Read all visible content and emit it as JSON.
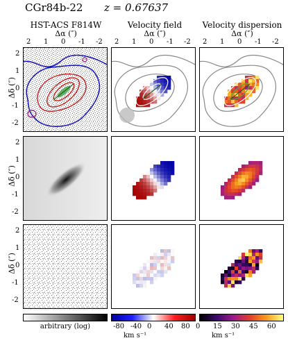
{
  "header": {
    "object": "CGr84b-22",
    "redshift": "z = 0.67637"
  },
  "columns": [
    {
      "title": "HST-ACS F814W",
      "xlabel": "Δα (″)"
    },
    {
      "title": "Velocity field",
      "xlabel": "Δα (″)"
    },
    {
      "title": "Velocity dispersion",
      "xlabel": "Δα (″)"
    }
  ],
  "xticks": [
    "2",
    "1",
    "0",
    "-1",
    "-2"
  ],
  "yticks": [
    "2",
    "1",
    "0",
    "-1",
    "-2"
  ],
  "ylabel": "Δδ (″)",
  "colorbars": {
    "image": {
      "label": "arbitrary (log)",
      "ticks": []
    },
    "velocity": {
      "unit": "km s⁻¹",
      "ticks": [
        "-80",
        "-40",
        "0",
        "40",
        "80"
      ],
      "range": [
        -100,
        100
      ]
    },
    "dispersion": {
      "unit": "km s⁻¹",
      "ticks": [
        "0",
        "15",
        "30",
        "45",
        "60"
      ],
      "range": [
        0,
        70
      ]
    }
  },
  "colors": {
    "blue": "#1010c0",
    "red": "#d01010",
    "grey": "#888888"
  }
}
